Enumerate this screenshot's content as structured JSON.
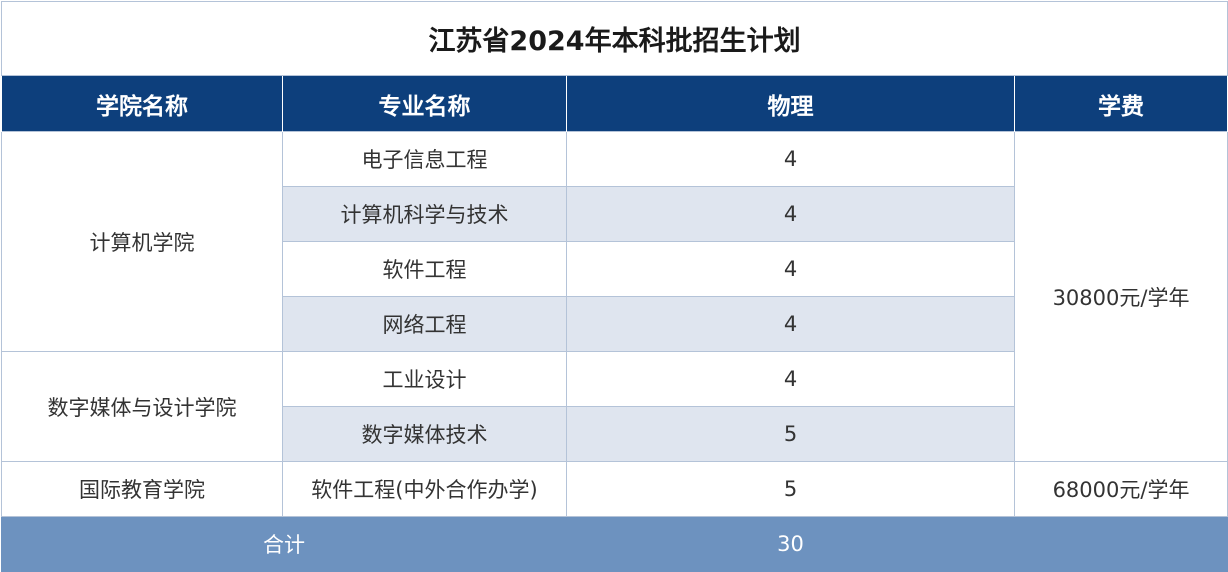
{
  "title": "江苏省2024年本科批招生计划",
  "header": [
    "学院名称",
    "专业名称",
    "物理",
    "学费"
  ],
  "colleges": [
    {
      "name": "计算机学院",
      "majors": [
        {
          "name": "电子信息工程",
          "physics": 4
        },
        {
          "name": "计算机科学与技术",
          "physics": 4
        },
        {
          "name": "软件工程",
          "physics": 4
        },
        {
          "name": "网络工程",
          "physics": 4
        }
      ]
    },
    {
      "name": "数字媒体与设计学院",
      "majors": [
        {
          "name": "工业设计",
          "physics": 4
        },
        {
          "name": "数字媒体技术",
          "physics": 5
        }
      ]
    },
    {
      "name": "国际教育学院",
      "majors": [
        {
          "name": "软件工程(中外合作办学)",
          "physics": 5
        }
      ]
    }
  ],
  "fees": [
    "30800元/学年",
    "68000元/学年"
  ],
  "total": {
    "label": "合计",
    "physics": 30
  }
}
